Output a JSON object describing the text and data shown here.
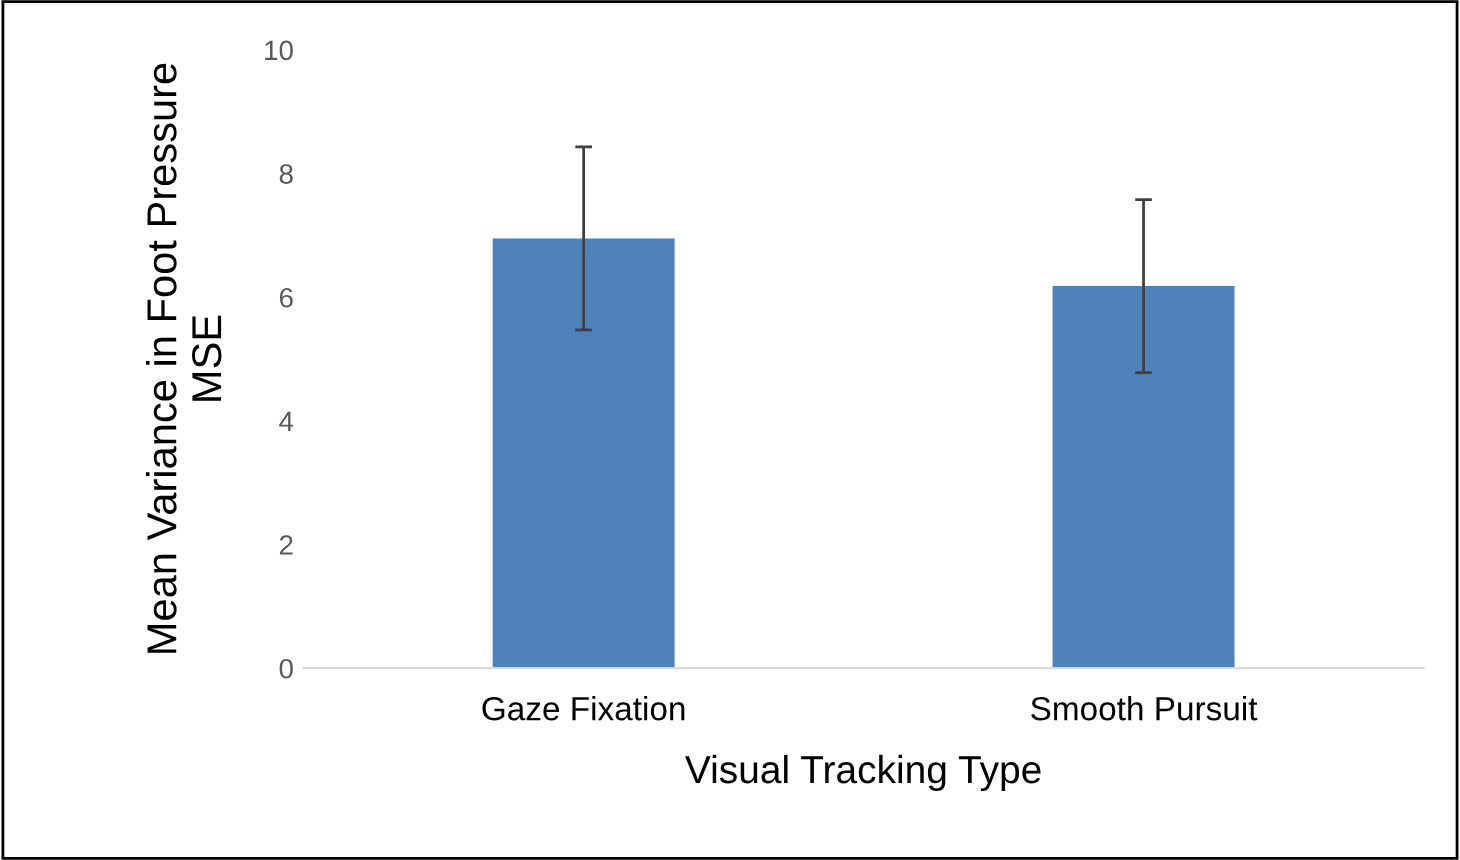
{
  "chart_data": {
    "type": "bar",
    "categories": [
      "Gaze Fixation",
      "Smooth Pursuit"
    ],
    "values": [
      6.95,
      6.18
    ],
    "errors": [
      1.48,
      1.4
    ],
    "color": "#4f81bd",
    "xlabel": "Visual Tracking Type",
    "ylabel": "Mean Variance in Foot Pressure\nMSE",
    "ylim": [
      0,
      10
    ],
    "yticks": [
      0,
      2,
      4,
      6,
      8,
      10
    ],
    "grid": false
  }
}
